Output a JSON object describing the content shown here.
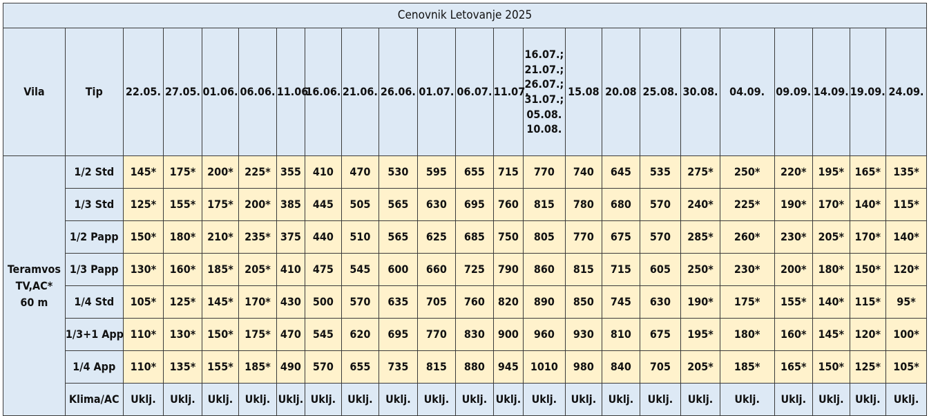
{
  "title": "Cenovnik Letovanje 2025",
  "headers": {
    "vila": "Vila",
    "tip": "Tip",
    "dates": [
      "22.05.",
      "27.05.",
      "01.06.",
      "06.06.",
      "11.06",
      "16.06.",
      "21.06.",
      "26.06.",
      "01.07.",
      "06.07.",
      "11.07.",
      "16.07.;\n21.07.;\n26.07.;\n31.07.;\n05.08.\n10.08.",
      "15.08",
      "20.08",
      "25.08.",
      "30.08.",
      "04.09.",
      "09.09.",
      "14.09.",
      "19.09.",
      "24.09."
    ]
  },
  "vila_name": "Teramvos\nTV,AC*\n60 m",
  "rows": [
    {
      "tip": "1/2 Std",
      "prices": [
        "145*",
        "175*",
        "200*",
        "225*",
        "355",
        "410",
        "470",
        "530",
        "595",
        "655",
        "715",
        "770",
        "740",
        "645",
        "535",
        "275*",
        "250*",
        "220*",
        "195*",
        "165*",
        "135*"
      ]
    },
    {
      "tip": "1/3 Std",
      "prices": [
        "125*",
        "155*",
        "175*",
        "200*",
        "385",
        "445",
        "505",
        "565",
        "630",
        "695",
        "760",
        "815",
        "780",
        "680",
        "570",
        "240*",
        "225*",
        "190*",
        "170*",
        "140*",
        "115*"
      ]
    },
    {
      "tip": "1/2 Papp",
      "prices": [
        "150*",
        "180*",
        "210*",
        "235*",
        "375",
        "440",
        "510",
        "565",
        "625",
        "685",
        "750",
        "805",
        "770",
        "675",
        "570",
        "285*",
        "260*",
        "230*",
        "205*",
        "170*",
        "140*"
      ]
    },
    {
      "tip": "1/3 Papp",
      "prices": [
        "130*",
        "160*",
        "185*",
        "205*",
        "410",
        "475",
        "545",
        "600",
        "660",
        "725",
        "790",
        "860",
        "815",
        "715",
        "605",
        "250*",
        "230*",
        "200*",
        "180*",
        "150*",
        "120*"
      ]
    },
    {
      "tip": "1/4 Std",
      "prices": [
        "105*",
        "125*",
        "145*",
        "170*",
        "430",
        "500",
        "570",
        "635",
        "705",
        "760",
        "820",
        "890",
        "850",
        "745",
        "630",
        "190*",
        "175*",
        "155*",
        "140*",
        "115*",
        "95*"
      ]
    },
    {
      "tip": "1/3+1 App",
      "prices": [
        "110*",
        "130*",
        "150*",
        "175*",
        "470",
        "545",
        "620",
        "695",
        "770",
        "830",
        "900",
        "960",
        "930",
        "810",
        "675",
        "195*",
        "180*",
        "160*",
        "145*",
        "120*",
        "100*"
      ]
    },
    {
      "tip": "1/4 App",
      "prices": [
        "110*",
        "135*",
        "155*",
        "185*",
        "490",
        "570",
        "655",
        "735",
        "815",
        "880",
        "945",
        "1010",
        "980",
        "840",
        "705",
        "205*",
        "185*",
        "165*",
        "150*",
        "125*",
        "105*"
      ]
    }
  ],
  "klima": {
    "label": "Klima/AC",
    "values": [
      "Uklj.",
      "Uklj.",
      "Uklj.",
      "Uklj.",
      "Uklj.",
      "Uklj.",
      "Uklj.",
      "Uklj.",
      "Uklj.",
      "Uklj.",
      "Uklj.",
      "Uklj.",
      "Uklj.",
      "Uklj.",
      "Uklj.",
      "Uklj.",
      "Uklj.",
      "Uklj.",
      "Uklj.",
      "Uklj.",
      "Uklj."
    ]
  },
  "colors": {
    "header_bg": "#dde9f5",
    "price_bg": "#fff2cc",
    "border": "#3a3a3a"
  }
}
